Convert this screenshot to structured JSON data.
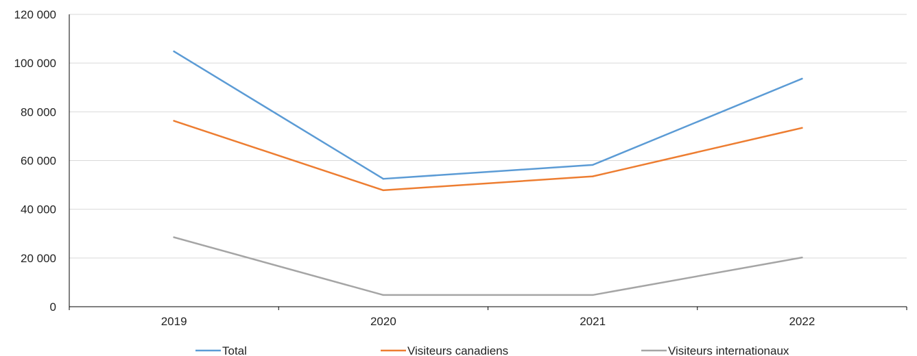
{
  "chart_data": {
    "type": "line",
    "title": "",
    "xlabel": "",
    "ylabel": "",
    "categories": [
      "2019",
      "2020",
      "2021",
      "2022"
    ],
    "ylim": [
      0,
      120000
    ],
    "yticks": [
      0,
      20000,
      40000,
      60000,
      80000,
      100000,
      120000
    ],
    "ytick_labels": [
      "0",
      "20 000",
      "40 000",
      "60 000",
      "80 000",
      "100 000",
      "120 000"
    ],
    "grid": "horizontal",
    "legend_position": "bottom",
    "series": [
      {
        "name": "Total",
        "color": "#5b9bd5",
        "values": [
          104800,
          52500,
          58200,
          93600
        ]
      },
      {
        "name": "Visiteurs canadiens",
        "color": "#ed7d31",
        "values": [
          76300,
          47800,
          53500,
          73400
        ]
      },
      {
        "name": "Visiteurs internationaux",
        "color": "#a5a5a5",
        "values": [
          28500,
          4800,
          4800,
          20200
        ]
      }
    ]
  }
}
